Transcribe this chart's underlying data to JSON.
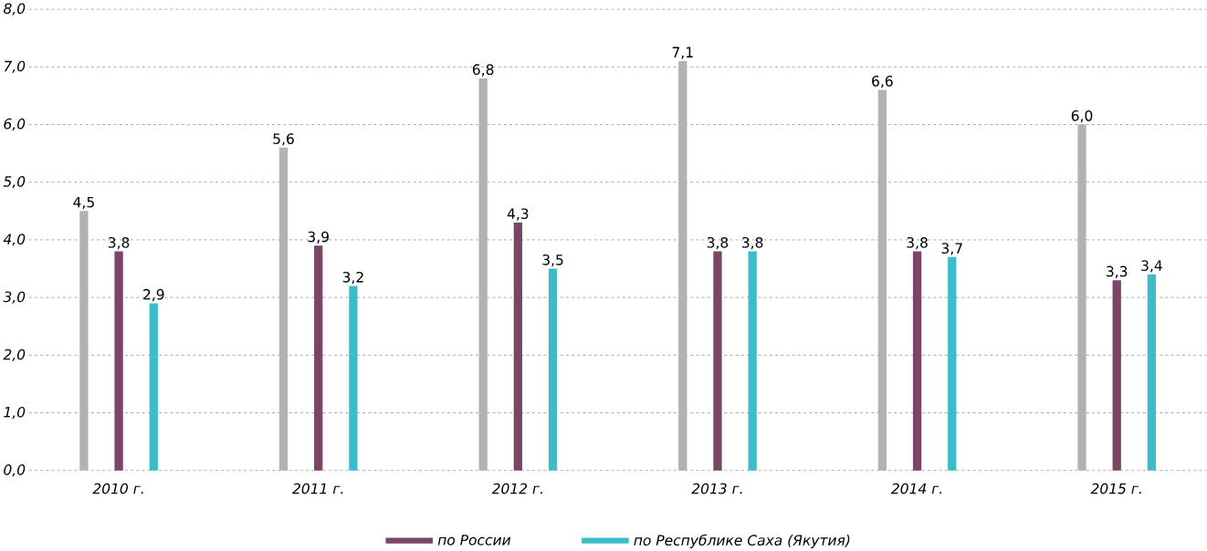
{
  "chart_data": {
    "type": "bar",
    "categories": [
      "2010 г.",
      "2011 г.",
      "2012 г.",
      "2013 г.",
      "2014 г.",
      "2015 г."
    ],
    "series": [
      {
        "color": "#b2b2b2",
        "values": [
          4.5,
          5.6,
          6.8,
          7.1,
          6.6,
          6.0
        ],
        "value_labels": [
          "4,5",
          "5,6",
          "6,8",
          "7,1",
          "6,6",
          "6,0"
        ]
      },
      {
        "name": "по России",
        "color": "#7a4566",
        "values": [
          3.8,
          3.9,
          4.3,
          3.8,
          3.8,
          3.3
        ],
        "value_labels": [
          "3,8",
          "3,9",
          "4,3",
          "3,8",
          "3,8",
          "3,3"
        ]
      },
      {
        "name": "по Республике Саха (Якутия)",
        "color": "#3cbccb",
        "values": [
          2.9,
          3.2,
          3.5,
          3.8,
          3.7,
          3.4
        ],
        "value_labels": [
          "2,9",
          "3,2",
          "3,5",
          "3,8",
          "3,7",
          "3,4"
        ]
      }
    ],
    "ylim": [
      0,
      8
    ],
    "yticks": [
      {
        "value": 0,
        "label": "0,0"
      },
      {
        "value": 1,
        "label": "1,0"
      },
      {
        "value": 2,
        "label": "2,0"
      },
      {
        "value": 3,
        "label": "3,0"
      },
      {
        "value": 4,
        "label": "4,0"
      },
      {
        "value": 5,
        "label": "5,0"
      },
      {
        "value": 6,
        "label": "6,0"
      },
      {
        "value": 7,
        "label": "7,0"
      },
      {
        "value": 8,
        "label": "8,0"
      }
    ],
    "grid": "y",
    "legend": "bottom"
  }
}
